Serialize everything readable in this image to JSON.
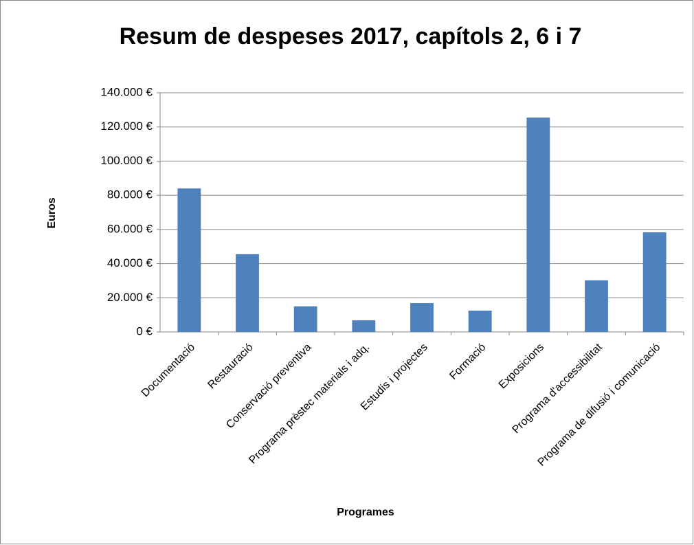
{
  "chart_data": {
    "type": "bar",
    "title": "Resum de despeses 2017, capítols 2, 6 i 7",
    "x_label": "Programes",
    "y_label": "Euros",
    "categories": [
      "Documentació",
      "Restauració",
      "Conservació preventiva",
      "Programa prèstec materials i adq.",
      "Estudis i projectes",
      "Formació",
      "Exposicions",
      "Programa d'accessibilitat",
      "Programa de difusió i comunicació"
    ],
    "values": [
      84000,
      45500,
      15000,
      6800,
      16900,
      12500,
      125500,
      30200,
      58300
    ],
    "color": "#4f81bd",
    "ylim": [
      0,
      140000
    ],
    "yticks": [
      {
        "value": 0,
        "label": "0 €"
      },
      {
        "value": 20000,
        "label": "20.000 €"
      },
      {
        "value": 40000,
        "label": "40.000 €"
      },
      {
        "value": 60000,
        "label": "60.000 €"
      },
      {
        "value": 80000,
        "label": "80.000 €"
      },
      {
        "value": 100000,
        "label": "100.000 €"
      },
      {
        "value": 120000,
        "label": "120.000 €"
      },
      {
        "value": 140000,
        "label": "140.000 €"
      }
    ],
    "grid": true
  }
}
